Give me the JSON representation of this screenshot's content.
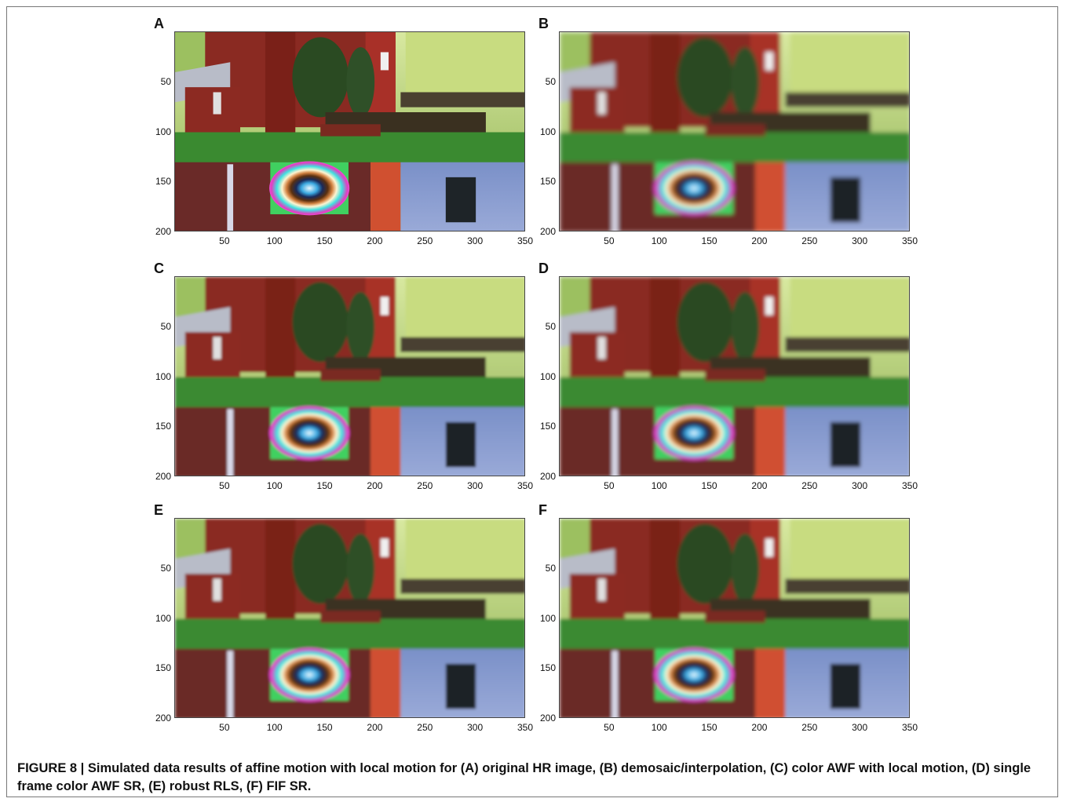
{
  "figure": {
    "caption": "FIGURE 8 | Simulated data results of affine motion with local motion for (A) original HR image, (B) demosaic/interpolation, (C) color AWF with local motion, (D) single frame color AWF SR, (E) robust RLS, (F) FIF SR."
  },
  "axes": {
    "y_ticks": [
      "50",
      "100",
      "150",
      "200"
    ],
    "x_ticks": [
      "50",
      "100",
      "150",
      "200",
      "250",
      "300",
      "350"
    ]
  },
  "panels": [
    {
      "letter": "A",
      "blur": 0
    },
    {
      "letter": "B",
      "blur": 2.2
    },
    {
      "letter": "C",
      "blur": 1.2
    },
    {
      "letter": "D",
      "blur": 1.8
    },
    {
      "letter": "E",
      "blur": 1.4
    },
    {
      "letter": "F",
      "blur": 1.6
    }
  ]
}
